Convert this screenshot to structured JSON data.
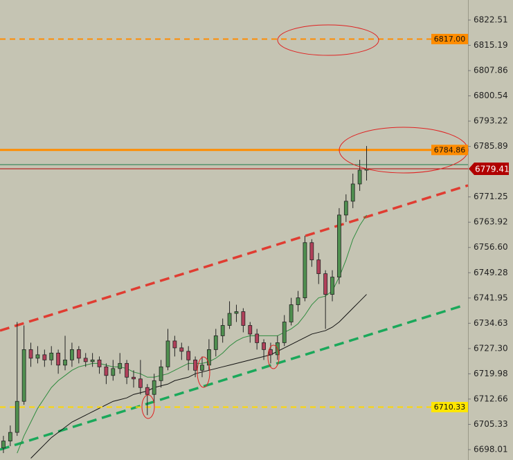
{
  "chart_data": {
    "type": "candlestick",
    "xlim": [
      -0.5,
      67.8
    ],
    "ylim": [
      6695.0,
      6828.32
    ],
    "yticks": [
      6822.51,
      6815.19,
      6807.86,
      6800.54,
      6793.22,
      6785.89,
      6771.25,
      6763.92,
      {
        "value": 6756.6,
        "label": "6756.60"
      },
      6749.28,
      6741.95,
      6734.63,
      {
        "value": 6727.3,
        "label": "6727.30"
      },
      6719.98,
      6712.66,
      6705.33,
      6698.01
    ],
    "candles": {
      "up_color": "#4f8f4f",
      "down_color": "#b0405a",
      "open": [
        6698.5,
        6700.5,
        6703,
        6712,
        6727,
        6724.5,
        6725.5,
        6724,
        6726,
        6722.5,
        6724,
        6727,
        6724.5,
        6723.5,
        6724,
        6722,
        6719.5,
        6721.5,
        6723,
        6719,
        6718.5,
        6716,
        6714,
        6718,
        6722,
        6729.5,
        6727.5,
        6726.5,
        6724,
        6721,
        6722.5,
        6727,
        6731,
        6734,
        6737.5,
        6738,
        6734,
        6731.5,
        6729,
        6727,
        6725.5,
        6729,
        6735,
        6740,
        6742,
        6758,
        6753,
        6749,
        6743,
        6748,
        6766,
        6770,
        6775,
        6779
      ],
      "high": [
        6702,
        6705,
        6735,
        6734,
        6729,
        6728,
        6727,
        6728,
        6727,
        6731,
        6729,
        6728,
        6726,
        6726,
        6725,
        6723,
        6724,
        6726,
        6724,
        6721,
        6724,
        6717,
        6720,
        6724,
        6733,
        6731,
        6729,
        6728,
        6725,
        6725,
        6730,
        6733,
        6736,
        6741,
        6740,
        6739,
        6735,
        6733,
        6730,
        6729,
        6731,
        6737,
        6742,
        6744,
        6760,
        6759,
        6755,
        6750,
        6750,
        6768,
        6772,
        6778,
        6782,
        6786
      ],
      "low": [
        6697,
        6699,
        6702,
        6711,
        6722,
        6723,
        6722,
        6722.5,
        6720,
        6721,
        6722,
        6723,
        6722,
        6722,
        6720,
        6717,
        6718,
        6720,
        6717,
        6716,
        6714,
        6708,
        6712,
        6716,
        6721,
        6725,
        6724,
        6721,
        6719,
        6719,
        6721,
        6725,
        6729,
        6733,
        6735,
        6732,
        6729,
        6727,
        6724,
        6723,
        6724,
        6728,
        6734,
        6738,
        6741,
        6751,
        6746,
        6733,
        6741,
        6746,
        6764,
        6768,
        6773,
        6776
      ],
      "close": [
        6700.5,
        6703,
        6712,
        6727,
        6724.5,
        6725.5,
        6724,
        6726,
        6722.5,
        6724,
        6727,
        6724.5,
        6723.5,
        6724,
        6722,
        6719.5,
        6721.5,
        6723,
        6719,
        6718.5,
        6716,
        6714,
        6718,
        6722,
        6729.5,
        6727.5,
        6726.5,
        6724,
        6721,
        6722.5,
        6727,
        6731,
        6734,
        6737.5,
        6738,
        6734,
        6731.5,
        6729,
        6727,
        6725.5,
        6729,
        6735,
        6740,
        6742,
        6758,
        6753,
        6749,
        6743,
        6748,
        6766,
        6770,
        6775,
        6779,
        6779.4
      ]
    },
    "moving_averages": [
      {
        "color": "#2e8b3e",
        "values": [
          null,
          null,
          6697,
          6702,
          6706,
          6710,
          6713,
          6716,
          6718,
          6719.5,
          6721,
          6722,
          6722.5,
          6723,
          6723,
          6722.5,
          6722,
          6722,
          6721.5,
          6720.5,
          6720,
          6719,
          6719,
          6719.5,
          6720,
          6721,
          6722,
          6723,
          6723,
          6723,
          6723.5,
          6724.5,
          6726,
          6728,
          6729.5,
          6730.5,
          6731,
          6731,
          6731,
          6731,
          6731,
          6732,
          6733,
          6734.5,
          6737,
          6740,
          6742,
          6742.5,
          6744,
          6748,
          6753,
          6759,
          6763,
          6766
        ]
      },
      {
        "color": "#111111",
        "values": [
          null,
          null,
          null,
          null,
          6695.5,
          6697.5,
          6699.5,
          6701.5,
          6703,
          6704.5,
          6706,
          6707,
          6708,
          6709,
          6710,
          6711,
          6712,
          6712.5,
          6713,
          6714,
          6714.5,
          6715,
          6716,
          6716.5,
          6717,
          6718,
          6718.5,
          6719,
          6720,
          6720.5,
          6721,
          6721.5,
          6722,
          6722.5,
          6723,
          6723.5,
          6724,
          6724.5,
          6725,
          6725.5,
          6726.5,
          6727.5,
          6728.5,
          6729.5,
          6730.5,
          6731.5,
          6732,
          6732.5,
          6733.5,
          6735,
          6737,
          6739,
          6741,
          6743
        ]
      }
    ],
    "trendlines": [
      {
        "color": "#e03c31",
        "x": [
          -0.5,
          67.8
        ],
        "y": [
          6732.49,
          6774.59
        ]
      },
      {
        "color": "#1aa85a",
        "x": [
          -0.5,
          67.0
        ],
        "y": [
          6698.01,
          6739.71
        ]
      }
    ],
    "levels": [
      {
        "value": 6817.0,
        "label": "6817.00",
        "color": "#ff8c00",
        "style": "dashed",
        "box": "#ff8c00",
        "text_color": "#111111"
      },
      {
        "value": 6784.86,
        "color": "#ff8c00",
        "style": "solid",
        "width": 3,
        "box": "#ff8c00",
        "text_color": "#111111"
      },
      {
        "value": 6780.6,
        "color": "#1a7a4a",
        "style": "solid",
        "width": 1
      },
      {
        "value": 6779.41,
        "color": "#b00000",
        "style": "solid",
        "width": 1,
        "box": "#b00000",
        "text_color": "#ffffff",
        "current": true
      },
      {
        "value": 6710.33,
        "color": "#ffd700",
        "style": "dashed",
        "box": "#ffe600",
        "text_color": "#111111"
      }
    ]
  }
}
